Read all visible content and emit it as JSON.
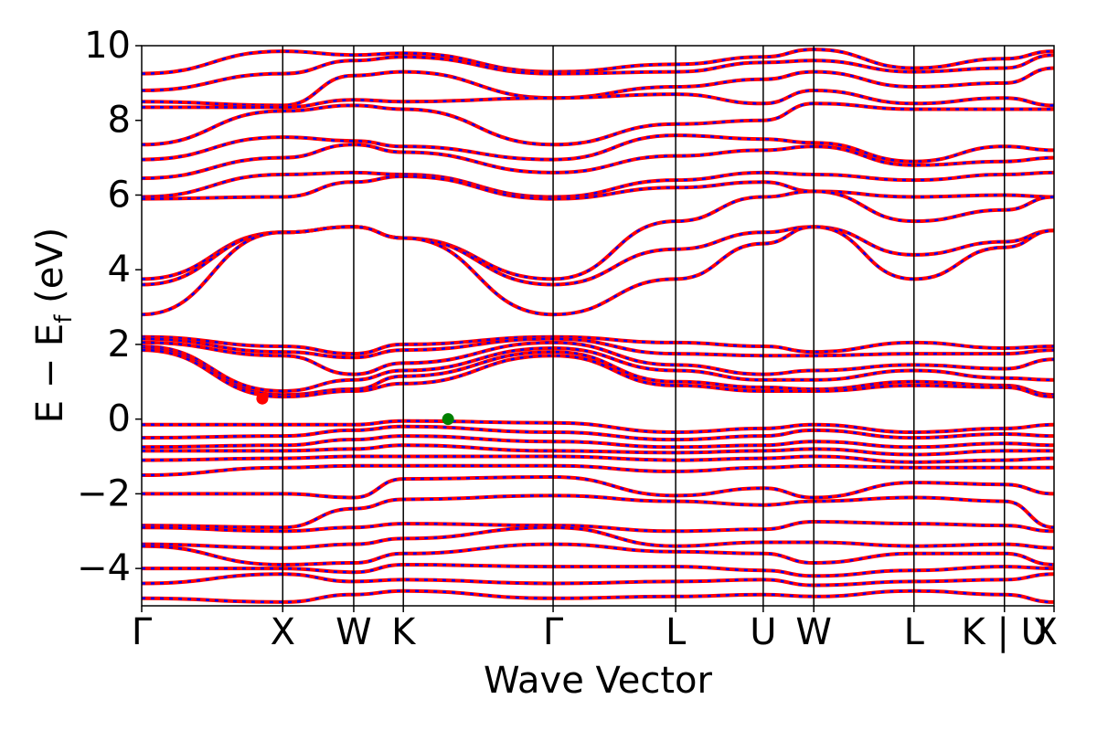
{
  "chart_data": {
    "type": "line",
    "xlabel": "Wave Vector",
    "ylabel": {
      "prefix": "E − E",
      "subscript": "f",
      "suffix": " (eV)"
    },
    "ylim": [
      -5,
      10
    ],
    "yticks": [
      {
        "value": 10,
        "label": "10"
      },
      {
        "value": 8,
        "label": "8"
      },
      {
        "value": 6,
        "label": "6"
      },
      {
        "value": 4,
        "label": "4"
      },
      {
        "value": 2,
        "label": "2"
      },
      {
        "value": 0,
        "label": "0"
      },
      {
        "value": -2,
        "label": "−2"
      },
      {
        "value": -4,
        "label": "−4"
      }
    ],
    "kpath_distance_range": [
      0,
      9.38
    ],
    "high_symmetry_points": [
      {
        "label": "Γ",
        "distance": 0.0
      },
      {
        "label": "X",
        "distance": 1.45
      },
      {
        "label": "W",
        "distance": 2.18
      },
      {
        "label": "K",
        "distance": 2.69
      },
      {
        "label": "Γ",
        "distance": 4.23
      },
      {
        "label": "L",
        "distance": 5.49
      },
      {
        "label": "U",
        "distance": 6.39
      },
      {
        "label": "W",
        "distance": 6.91
      },
      {
        "label": "L",
        "distance": 7.94
      },
      {
        "label": "K | U",
        "distance": 8.87
      },
      {
        "label": "X",
        "distance": 9.38
      }
    ],
    "line_colors": {
      "solid": "#ff0000",
      "dashed": "#0000ff"
    },
    "markers": [
      {
        "name": "conduction band minimum",
        "distance": 1.24,
        "energy": 0.55,
        "color": "#ff0000"
      },
      {
        "name": "valence band maximum",
        "distance": 3.15,
        "energy": 0.0,
        "color": "#008000"
      }
    ],
    "bands": [
      {
        "group": "conduction",
        "energies": [
          9.25,
          9.85,
          9.75,
          9.8,
          9.3,
          9.5,
          9.7,
          9.9,
          9.4,
          9.65,
          9.85
        ]
      },
      {
        "group": "conduction",
        "energies": [
          8.8,
          9.25,
          9.6,
          9.7,
          9.25,
          9.3,
          9.55,
          9.6,
          9.3,
          9.4,
          9.75
        ]
      },
      {
        "group": "conduction",
        "energies": [
          8.5,
          8.4,
          9.2,
          9.3,
          8.6,
          8.9,
          9.1,
          9.3,
          8.9,
          9.0,
          9.4
        ]
      },
      {
        "group": "conduction",
        "energies": [
          8.35,
          8.35,
          8.55,
          8.5,
          8.6,
          8.7,
          8.45,
          8.8,
          8.45,
          8.6,
          8.4
        ]
      },
      {
        "group": "conduction",
        "energies": [
          7.35,
          8.25,
          8.4,
          8.3,
          7.35,
          7.9,
          8.0,
          8.45,
          8.3,
          8.3,
          8.3
        ]
      },
      {
        "group": "conduction",
        "energies": [
          6.95,
          7.55,
          7.45,
          7.3,
          6.95,
          7.6,
          7.5,
          7.4,
          6.9,
          7.3,
          7.2
        ]
      },
      {
        "group": "conduction",
        "energies": [
          6.45,
          7.0,
          7.35,
          7.15,
          6.6,
          7.05,
          7.2,
          7.3,
          6.8,
          6.9,
          7.0
        ]
      },
      {
        "group": "conduction",
        "energies": [
          5.95,
          6.55,
          6.6,
          6.55,
          5.95,
          6.4,
          6.6,
          6.55,
          6.4,
          6.55,
          6.6
        ]
      },
      {
        "group": "conduction",
        "energies": [
          5.9,
          5.95,
          6.35,
          6.5,
          5.9,
          6.2,
          6.35,
          6.1,
          5.95,
          6.0,
          5.95
        ]
      },
      {
        "group": "conduction",
        "energies": [
          3.75,
          5.0,
          5.15,
          4.85,
          3.75,
          5.3,
          5.95,
          6.1,
          5.3,
          5.6,
          5.95
        ]
      },
      {
        "group": "conduction",
        "energies": [
          3.6,
          5.0,
          5.15,
          4.85,
          3.6,
          4.55,
          5.0,
          5.15,
          4.4,
          4.75,
          5.05
        ]
      },
      {
        "group": "conduction",
        "energies": [
          2.8,
          5.0,
          5.15,
          4.85,
          2.8,
          3.75,
          4.7,
          5.15,
          3.75,
          4.6,
          5.05
        ]
      },
      {
        "group": "gap-bands",
        "energies": [
          2.2,
          1.95,
          1.75,
          2.0,
          2.2,
          2.05,
          1.95,
          1.8,
          2.05,
          1.9,
          1.95
        ]
      },
      {
        "group": "gap-bands",
        "energies": [
          2.15,
          1.8,
          1.65,
          1.85,
          2.15,
          1.75,
          1.7,
          1.7,
          1.75,
          1.75,
          1.85
        ]
      },
      {
        "group": "gap-bands",
        "energies": [
          2.05,
          1.7,
          1.2,
          1.5,
          2.05,
          1.45,
          1.2,
          1.3,
          1.45,
          1.35,
          1.6
        ]
      },
      {
        "group": "gap-bands",
        "energies": [
          1.95,
          0.75,
          1.05,
          1.3,
          1.9,
          1.3,
          1.05,
          1.05,
          1.3,
          1.1,
          1.05
        ]
      },
      {
        "group": "gap-bands",
        "energies": [
          1.9,
          0.65,
          0.8,
          1.15,
          1.8,
          1.0,
          0.85,
          0.8,
          1.0,
          0.9,
          0.65
        ]
      },
      {
        "group": "gap-bands",
        "energies": [
          1.85,
          0.6,
          0.75,
          0.95,
          1.7,
          0.9,
          0.75,
          0.75,
          0.9,
          0.85,
          0.6
        ]
      },
      {
        "group": "valence",
        "energies": [
          -0.15,
          -0.15,
          -0.15,
          -0.05,
          -0.1,
          -0.35,
          -0.25,
          -0.15,
          -0.35,
          -0.25,
          -0.15
        ]
      },
      {
        "group": "valence",
        "energies": [
          -0.5,
          -0.45,
          -0.3,
          -0.2,
          -0.35,
          -0.55,
          -0.45,
          -0.3,
          -0.5,
          -0.4,
          -0.45
        ]
      },
      {
        "group": "valence",
        "energies": [
          -0.75,
          -0.7,
          -0.55,
          -0.45,
          -0.6,
          -0.75,
          -0.7,
          -0.6,
          -0.75,
          -0.65,
          -0.7
        ]
      },
      {
        "group": "valence",
        "energies": [
          -0.85,
          -0.85,
          -0.8,
          -0.7,
          -0.85,
          -0.9,
          -0.85,
          -0.8,
          -0.95,
          -0.85,
          -0.85
        ]
      },
      {
        "group": "valence",
        "energies": [
          -1.1,
          -1.05,
          -1.0,
          -1.0,
          -1.0,
          -1.1,
          -1.05,
          -1.0,
          -1.15,
          -1.1,
          -1.05
        ]
      },
      {
        "group": "valence",
        "energies": [
          -1.5,
          -1.3,
          -1.25,
          -1.25,
          -1.25,
          -1.4,
          -1.3,
          -1.25,
          -1.3,
          -1.3,
          -1.3
        ]
      },
      {
        "group": "valence",
        "energies": [
          -2.0,
          -2.0,
          -2.1,
          -1.6,
          -1.55,
          -2.05,
          -1.85,
          -2.1,
          -1.7,
          -1.75,
          -2.0
        ]
      },
      {
        "group": "valence",
        "energies": [
          -2.85,
          -2.9,
          -2.4,
          -2.15,
          -2.05,
          -2.2,
          -2.3,
          -2.2,
          -2.1,
          -2.2,
          -2.9
        ]
      },
      {
        "group": "valence",
        "energies": [
          -2.9,
          -3.0,
          -2.9,
          -2.8,
          -2.85,
          -3.0,
          -2.95,
          -2.75,
          -2.8,
          -2.85,
          -3.0
        ]
      },
      {
        "group": "valence",
        "energies": [
          -3.35,
          -3.45,
          -3.35,
          -3.2,
          -2.9,
          -3.4,
          -3.3,
          -3.3,
          -3.4,
          -3.35,
          -3.45
        ]
      },
      {
        "group": "valence",
        "energies": [
          -3.4,
          -3.9,
          -3.85,
          -3.6,
          -3.35,
          -3.55,
          -3.6,
          -3.85,
          -3.6,
          -3.6,
          -3.9
        ]
      },
      {
        "group": "valence",
        "energies": [
          -4.0,
          -4.0,
          -4.1,
          -3.9,
          -3.95,
          -3.95,
          -4.05,
          -4.2,
          -4.05,
          -3.95,
          -4.0
        ]
      },
      {
        "group": "valence",
        "energies": [
          -4.4,
          -4.15,
          -4.35,
          -4.3,
          -4.4,
          -4.35,
          -4.3,
          -4.45,
          -4.35,
          -4.3,
          -4.15
        ]
      },
      {
        "group": "valence",
        "energies": [
          -4.8,
          -4.9,
          -4.7,
          -4.6,
          -4.8,
          -4.75,
          -4.7,
          -4.75,
          -4.6,
          -4.7,
          -4.9
        ]
      }
    ]
  }
}
